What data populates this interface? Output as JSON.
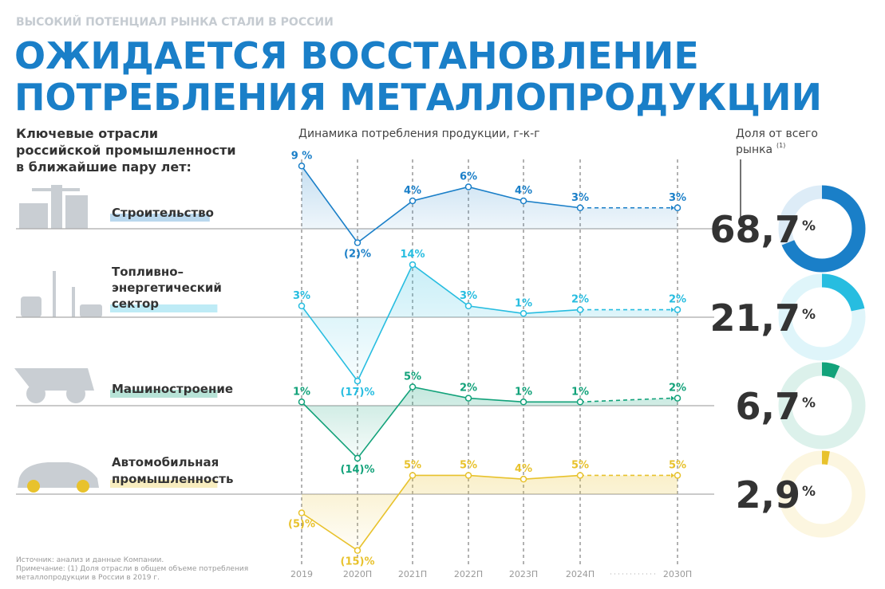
{
  "kicker": "ВЫСОКИЙ ПОТЕНЦИАЛ РЫНКА СТАЛИ В РОССИИ",
  "title": [
    "ОЖИДАЕТСЯ ВОССТАНОВЛЕНИЕ",
    "ПОТРЕБЛЕНИЯ МЕТАЛЛОПРОДУКЦИИ"
  ],
  "left_heading": [
    "Ключевые отрасли",
    "российской промышленности",
    "в ближайшие пару лет:"
  ],
  "share_heading": [
    "Доля от всего",
    "рынка"
  ],
  "share_note_mark": "(1)",
  "footnote": [
    "Источник: анализ и данные Компании.",
    "Примечание: (1) Доля отрасли в общем объеме потребления",
    "металлопродукции в России в 2019 г."
  ],
  "chart_data": {
    "type": "line",
    "subtitle": "Динамика потребления продукции, г-к-г",
    "categories": [
      "2019",
      "2020П",
      "2021П",
      "2022П",
      "2023П",
      "2024П",
      "2030П"
    ],
    "share_unit": "%",
    "series": [
      {
        "name": [
          "Строительство"
        ],
        "color": "#1a7fc8",
        "values": [
          9,
          -2,
          4,
          6,
          4,
          3,
          3
        ],
        "value_labels": [
          "9 %",
          "(2)%",
          "4%",
          "6%",
          "4%",
          "3%",
          "3%"
        ],
        "ylim": [
          -3,
          9
        ],
        "share": 68.7,
        "share_label": "68,7"
      },
      {
        "name": [
          "Топливно–",
          "энергетический",
          "сектор"
        ],
        "color": "#27bde0",
        "values": [
          3,
          -17,
          14,
          3,
          1,
          2,
          2
        ],
        "value_labels": [
          "3%",
          "(17)%",
          "14%",
          "3%",
          "1%",
          "2%",
          "2%"
        ],
        "ylim": [
          -17,
          14
        ],
        "share": 21.7,
        "share_label": "21,7"
      },
      {
        "name": [
          "Машиностроение"
        ],
        "color": "#12a27a",
        "values": [
          1,
          -14,
          5,
          2,
          1,
          1,
          2
        ],
        "value_labels": [
          "1%",
          "(14)%",
          "5%",
          "2%",
          "1%",
          "1%",
          "2%"
        ],
        "ylim": [
          -17,
          14
        ],
        "share": 6.7,
        "share_label": "6,7"
      },
      {
        "name": [
          "Автомобильная",
          "промышленность"
        ],
        "color": "#e8c22c",
        "values": [
          -5,
          -15,
          5,
          5,
          4,
          5,
          5
        ],
        "value_labels": [
          "(5)%",
          "(15)%",
          "5%",
          "5%",
          "4%",
          "5%",
          "5%"
        ],
        "ylim": [
          -17,
          14
        ],
        "share": 2.9,
        "share_label": "2,9"
      }
    ]
  }
}
